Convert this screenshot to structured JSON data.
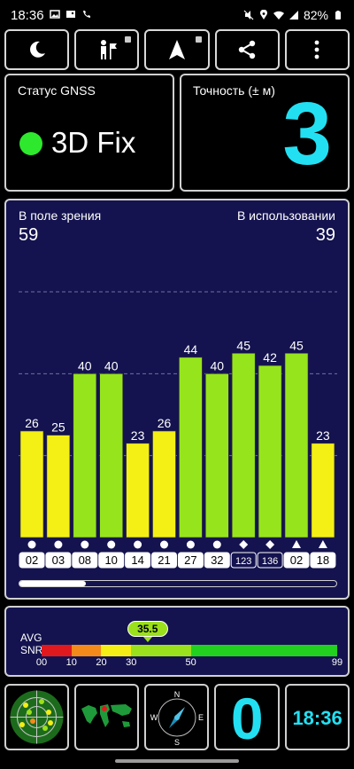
{
  "status_bar": {
    "time": "18:36",
    "battery": "82%",
    "left_icons": [
      "gallery-icon",
      "image-icon",
      "call-wifi-icon"
    ],
    "right_icons": [
      "mute-icon",
      "location-icon",
      "wifi-icon",
      "signal-icon",
      "battery-icon"
    ]
  },
  "toolbar": {
    "buttons": [
      "night-mode-icon",
      "map-pin-icon",
      "navigation-icon",
      "share-icon",
      "more-icon"
    ]
  },
  "gnss_status": {
    "label": "Статус GNSS",
    "value": "3D Fix",
    "indicator_color": "#2ee82e"
  },
  "accuracy": {
    "label": "Точность (± м)",
    "value": "3",
    "color": "#22e0f2"
  },
  "satellites": {
    "in_view_label": "В поле зрения",
    "in_view": "59",
    "in_use_label": "В использовании",
    "in_use": "39",
    "scroll_position": 0.21
  },
  "chart_data": {
    "type": "bar",
    "categories": [
      "02",
      "03",
      "08",
      "10",
      "14",
      "21",
      "27",
      "32",
      "123",
      "136",
      "02",
      "18"
    ],
    "values": [
      26,
      25,
      40,
      40,
      23,
      26,
      44,
      40,
      45,
      42,
      45,
      23
    ],
    "constellation_marker": [
      "circle",
      "circle",
      "circle",
      "circle",
      "circle",
      "circle",
      "circle",
      "circle",
      "diamond",
      "diamond",
      "triangle",
      "triangle"
    ],
    "label_style": [
      "filled",
      "filled",
      "filled",
      "filled",
      "filled",
      "filled",
      "filled",
      "filled",
      "outlined",
      "outlined",
      "filled",
      "filled"
    ],
    "ylim": [
      0,
      60
    ],
    "gridlines": [
      20,
      40,
      60
    ],
    "color_low": "#f4f016",
    "color_high": "#96e51c",
    "color_threshold": 30
  },
  "snr": {
    "avg_label": "AVG",
    "snr_label": "SNR",
    "avg_value": "35.5",
    "avg_number": 35.5,
    "ticks": [
      "00",
      "10",
      "20",
      "30",
      "50",
      "99"
    ],
    "segments": [
      {
        "from": 0,
        "to": 10,
        "color": "#e0191f"
      },
      {
        "from": 10,
        "to": 20,
        "color": "#f48a1a"
      },
      {
        "from": 20,
        "to": 30,
        "color": "#f4ee16"
      },
      {
        "from": 30,
        "to": 50,
        "color": "#9be01c"
      },
      {
        "from": 50,
        "to": 99,
        "color": "#22d01f"
      }
    ]
  },
  "bottom": {
    "count_value": "0",
    "clock": "18:36",
    "items": [
      "sky-radar-icon",
      "world-map-icon",
      "compass-icon"
    ],
    "compass": {
      "n": "N",
      "e": "E",
      "s": "S",
      "w": "W"
    }
  }
}
